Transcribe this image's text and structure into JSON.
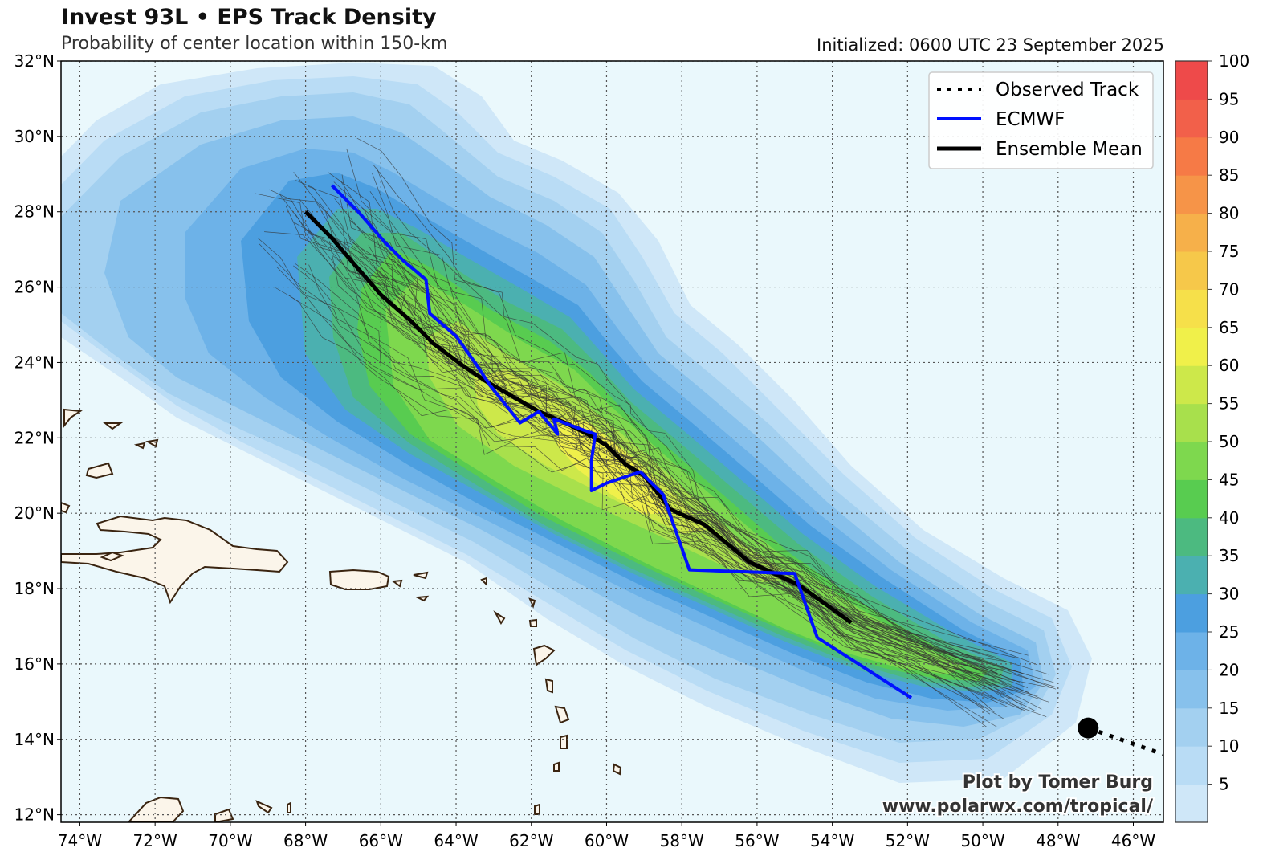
{
  "header": {
    "title": "Invest 93L • EPS Track Density",
    "subtitle": "Probability of center location within 150-km",
    "initialized": "Initialized: 0600 UTC 23 September 2025"
  },
  "map": {
    "lon_range": [
      -74.5,
      -45.2
    ],
    "lat_range": [
      11.8,
      32.0
    ],
    "lat_ticks": [
      {
        "value": 32,
        "label": "32°N"
      },
      {
        "value": 30,
        "label": "30°N"
      },
      {
        "value": 28,
        "label": "28°N"
      },
      {
        "value": 26,
        "label": "26°N"
      },
      {
        "value": 24,
        "label": "24°N"
      },
      {
        "value": 22,
        "label": "22°N"
      },
      {
        "value": 20,
        "label": "20°N"
      },
      {
        "value": 18,
        "label": "18°N"
      },
      {
        "value": 16,
        "label": "16°N"
      },
      {
        "value": 14,
        "label": "14°N"
      },
      {
        "value": 12,
        "label": "12°N"
      }
    ],
    "lon_ticks": [
      {
        "value": -74,
        "label": "74°W"
      },
      {
        "value": -72,
        "label": "72°W"
      },
      {
        "value": -70,
        "label": "70°W"
      },
      {
        "value": -68,
        "label": "68°W"
      },
      {
        "value": -66,
        "label": "66°W"
      },
      {
        "value": -64,
        "label": "64°W"
      },
      {
        "value": -62,
        "label": "62°W"
      },
      {
        "value": -60,
        "label": "60°W"
      },
      {
        "value": -58,
        "label": "58°W"
      },
      {
        "value": -56,
        "label": "56°W"
      },
      {
        "value": -54,
        "label": "54°W"
      },
      {
        "value": -52,
        "label": "52°W"
      },
      {
        "value": -50,
        "label": "50°W"
      },
      {
        "value": -48,
        "label": "48°W"
      },
      {
        "value": -46,
        "label": "46°W"
      }
    ],
    "colors": {
      "ocean": "#eaf8fc",
      "land": "#fbf5ea",
      "coast": "#3a2410",
      "ecmwf": "#0010ff",
      "mean": "#000000",
      "member": "#333333"
    },
    "ensemble_mean": [
      [
        -68.0,
        28.0
      ],
      [
        -67.3,
        27.3
      ],
      [
        -66.7,
        26.6
      ],
      [
        -66.0,
        25.8
      ],
      [
        -65.2,
        25.1
      ],
      [
        -64.6,
        24.5
      ],
      [
        -63.8,
        23.9
      ],
      [
        -63.2,
        23.5
      ],
      [
        -62.5,
        23.1
      ],
      [
        -61.8,
        22.7
      ],
      [
        -61.1,
        22.4
      ],
      [
        -60.5,
        22.1
      ],
      [
        -60.0,
        21.8
      ],
      [
        -59.5,
        21.3
      ],
      [
        -59.0,
        21.0
      ],
      [
        -58.3,
        20.1
      ],
      [
        -57.4,
        19.7
      ],
      [
        -56.2,
        18.7
      ],
      [
        -54.9,
        18.1
      ],
      [
        -53.5,
        17.1
      ]
    ],
    "ecmwf": [
      [
        -67.3,
        28.7
      ],
      [
        -66.6,
        28.0
      ],
      [
        -65.9,
        27.2
      ],
      [
        -65.4,
        26.7
      ],
      [
        -64.8,
        26.2
      ],
      [
        -64.7,
        25.3
      ],
      [
        -64.0,
        24.7
      ],
      [
        -63.5,
        24.0
      ],
      [
        -63.1,
        23.4
      ],
      [
        -62.7,
        22.9
      ],
      [
        -62.3,
        22.4
      ],
      [
        -61.8,
        22.7
      ],
      [
        -61.3,
        22.1
      ],
      [
        -61.4,
        22.5
      ],
      [
        -60.6,
        22.2
      ],
      [
        -60.3,
        22.1
      ],
      [
        -60.4,
        21.4
      ],
      [
        -60.4,
        20.6
      ],
      [
        -60.0,
        20.8
      ],
      [
        -59.1,
        21.1
      ],
      [
        -58.5,
        20.5
      ],
      [
        -57.8,
        18.5
      ],
      [
        -55.0,
        18.4
      ],
      [
        -54.4,
        16.7
      ],
      [
        -51.9,
        15.1
      ]
    ],
    "observed_track": [
      [
        -47.2,
        14.3
      ],
      [
        -45.2,
        13.6
      ]
    ],
    "current_position": [
      -47.2,
      14.3
    ],
    "density_core_point": [
      -58.5,
      20.3
    ],
    "legend": [
      {
        "label": "Observed Track",
        "style": "dotted",
        "color": "#000000"
      },
      {
        "label": "ECMWF",
        "style": "solid",
        "color": "#0010ff"
      },
      {
        "label": "Ensemble Mean",
        "style": "solid-thick",
        "color": "#000000"
      }
    ],
    "credit": {
      "line1": "Plot by Tomer Burg",
      "line2": "www.polarwx.com/tropical/"
    }
  },
  "colorbar": {
    "labels": [
      "100",
      "95",
      "90",
      "85",
      "80",
      "75",
      "70",
      "65",
      "60",
      "55",
      "50",
      "45",
      "40",
      "35",
      "30",
      "25",
      "20",
      "15",
      "10",
      "5"
    ],
    "label_values": [
      100,
      95,
      90,
      85,
      80,
      75,
      70,
      65,
      60,
      55,
      50,
      45,
      40,
      35,
      30,
      25,
      20,
      15,
      10,
      5
    ],
    "colors": [
      "#cfe7f8",
      "#b9dcf5",
      "#a3d0f0",
      "#87c1ec",
      "#6db2e8",
      "#4c9fe0",
      "#4bb0b0",
      "#4cba80",
      "#58cc50",
      "#7ed84e",
      "#a8e04c",
      "#cde84a",
      "#f0f04a",
      "#f6e04a",
      "#f6c84a",
      "#f6b04a",
      "#f69448",
      "#f67a46",
      "#f2604a",
      "#ee4a4a"
    ]
  }
}
